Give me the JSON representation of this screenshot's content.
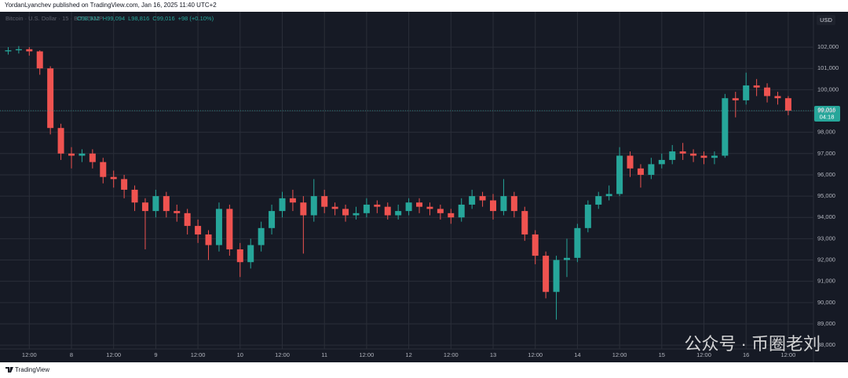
{
  "chart_data": {
    "type": "candlestick",
    "header": "YordanLyanchev published on TradingView.com, Jan 16, 2025 11:40 UTC+2",
    "symbol": "Bitcoin · U.S. Dollar · 15 · BITSTAMP",
    "ohlc_legend": [
      "O98,932",
      "H99,094",
      "L98,816",
      "C99,016",
      "+98 (+0.10%)"
    ],
    "currency": "USD",
    "last_price_label": "99,016",
    "countdown": "04:18",
    "watermark": "公众号 · 币圈老刘",
    "branding": "TradingView",
    "up_color": "#26a69a",
    "down_color": "#ef5350",
    "grid": true,
    "categories": [
      null,
      null,
      "12:00",
      null,
      null,
      null,
      "8",
      null,
      null,
      null,
      "12:00",
      null,
      null,
      null,
      "9",
      null,
      null,
      null,
      "12:00",
      null,
      null,
      null,
      "10",
      null,
      null,
      null,
      "12:00",
      null,
      null,
      null,
      "11",
      null,
      null,
      null,
      "12:00",
      null,
      null,
      null,
      "12",
      null,
      null,
      null,
      "12:00",
      null,
      null,
      null,
      "13",
      null,
      null,
      null,
      "12:00",
      null,
      null,
      null,
      "14",
      null,
      null,
      null,
      "12:00",
      null,
      null,
      null,
      "15",
      null,
      null,
      null,
      "12:00",
      null,
      null,
      null,
      "16",
      null,
      null,
      null,
      "12:00"
    ],
    "open": [
      101800,
      101850,
      101900,
      101800,
      101000,
      98200,
      97000,
      96900,
      97000,
      96600,
      95900,
      95800,
      95300,
      94700,
      94300,
      95000,
      94300,
      94200,
      93600,
      93200,
      92700,
      94400,
      92500,
      91900,
      92700,
      93500,
      94300,
      94900,
      94700,
      94100,
      95000,
      94500,
      94400,
      94100,
      94200,
      94600,
      94500,
      94100,
      94300,
      94700,
      94500,
      94400,
      94200,
      94000,
      94600,
      95000,
      94800,
      94300,
      95000,
      94300,
      93200,
      92200,
      90500,
      92000,
      92100,
      93500,
      94600,
      95000,
      95100,
      96900,
      96300,
      96000,
      96500,
      96700,
      97100,
      97000,
      96900,
      96800,
      96900,
      99600,
      99500,
      100200,
      100100,
      99700,
      99600
    ],
    "high": [
      102000,
      102050,
      102000,
      101850,
      101100,
      98400,
      97300,
      97200,
      97200,
      96800,
      96200,
      96000,
      95500,
      94900,
      95300,
      95200,
      94600,
      94400,
      93900,
      93400,
      94700,
      94600,
      92800,
      93000,
      93800,
      94600,
      95200,
      95300,
      95000,
      95800,
      95300,
      94700,
      94600,
      94500,
      94900,
      94800,
      94700,
      94600,
      94900,
      94900,
      94700,
      94600,
      94400,
      94900,
      95300,
      95200,
      95100,
      95800,
      95200,
      94500,
      93400,
      92400,
      92200,
      93000,
      93700,
      94800,
      95200,
      95500,
      97300,
      97100,
      96500,
      96800,
      97000,
      97400,
      97500,
      97200,
      97100,
      97100,
      99800,
      99900,
      100800,
      100500,
      100300,
      99900,
      99700
    ],
    "low": [
      101650,
      101700,
      101600,
      100700,
      97900,
      96700,
      96300,
      96600,
      96300,
      95600,
      95400,
      94900,
      94300,
      92500,
      94000,
      94000,
      93800,
      93200,
      92800,
      92000,
      92400,
      92200,
      91200,
      91600,
      92400,
      93200,
      94000,
      94300,
      92300,
      93800,
      94200,
      94100,
      93800,
      93900,
      94000,
      94200,
      93900,
      93900,
      94100,
      94200,
      94100,
      93900,
      93700,
      93800,
      94400,
      94500,
      93900,
      94100,
      94000,
      92900,
      91800,
      90200,
      89200,
      91200,
      91900,
      93300,
      94400,
      94800,
      95000,
      95900,
      95400,
      95800,
      96300,
      96500,
      96700,
      96600,
      96500,
      96500,
      96800,
      98700,
      99300,
      99700,
      99400,
      99300,
      98800
    ],
    "close": [
      101850,
      101900,
      101800,
      101000,
      98200,
      97000,
      96900,
      97000,
      96600,
      95900,
      95800,
      95300,
      94700,
      94300,
      95000,
      94300,
      94200,
      93600,
      93200,
      92700,
      94400,
      92500,
      91900,
      92700,
      93500,
      94300,
      94900,
      94700,
      94100,
      95000,
      94500,
      94400,
      94100,
      94200,
      94600,
      94500,
      94100,
      94300,
      94700,
      94500,
      94400,
      94200,
      94000,
      94600,
      95000,
      94800,
      94300,
      95000,
      94300,
      93200,
      92200,
      90500,
      92000,
      92100,
      93500,
      94600,
      95000,
      95100,
      96900,
      96300,
      96000,
      96500,
      96700,
      97100,
      97000,
      96900,
      96800,
      96900,
      99600,
      99500,
      100200,
      100100,
      99700,
      99600,
      99016
    ],
    "ylim": [
      87820,
      103660
    ],
    "yticks": [
      {
        "value": 88000,
        "label": "88,000"
      },
      {
        "value": 89000,
        "label": "89,000"
      },
      {
        "value": 90000,
        "label": "90,000"
      },
      {
        "value": 91000,
        "label": "91,000"
      },
      {
        "value": 92000,
        "label": "92,000"
      },
      {
        "value": 93000,
        "label": "93,000"
      },
      {
        "value": 94000,
        "label": "94,000"
      },
      {
        "value": 95000,
        "label": "95,000"
      },
      {
        "value": 96000,
        "label": "96,000"
      },
      {
        "value": 97000,
        "label": "97,000"
      },
      {
        "value": 98000,
        "label": "98,000"
      },
      {
        "value": 99000,
        "label": "99,000"
      },
      {
        "value": 100000,
        "label": "100,000"
      },
      {
        "value": 101000,
        "label": "101,000"
      },
      {
        "value": 102000,
        "label": "102,000"
      }
    ]
  }
}
